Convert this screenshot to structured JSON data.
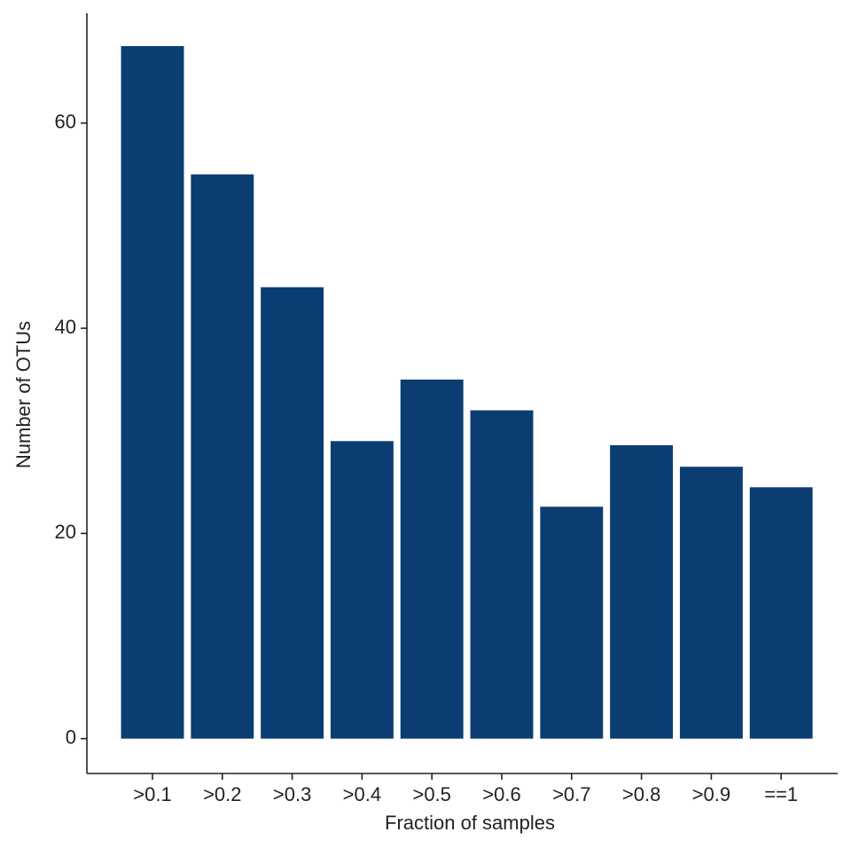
{
  "chart_data": {
    "type": "bar",
    "x_label": "Fraction of samples",
    "y_label": "Number of OTUs",
    "categories": [
      ">0.1",
      ">0.2",
      ">0.3",
      ">0.4",
      ">0.5",
      ">0.6",
      ">0.7",
      ">0.8",
      ">0.9",
      "==1"
    ],
    "values": [
      67.5,
      55,
      44,
      29,
      35,
      32,
      22.6,
      28.6,
      26.5,
      24.5
    ],
    "color": "#0b3d73",
    "ylim": [
      -3.4,
      70.7
    ],
    "yticks": [
      0,
      20,
      40,
      60
    ],
    "grid": false
  }
}
